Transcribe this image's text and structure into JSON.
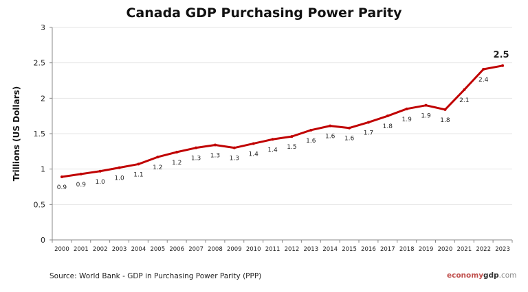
{
  "chart_data": {
    "type": "line",
    "title": "Canada GDP Purchasing Power Parity",
    "xlabel": "",
    "ylabel": "Trillions (US Dollars)",
    "ylim": [
      0,
      3
    ],
    "yticks": [
      "0",
      "0.5",
      "1",
      "1.5",
      "2",
      "2.5",
      "3"
    ],
    "grid": true,
    "line_color": "#c00000",
    "categories": [
      "2000",
      "2001",
      "2002",
      "2003",
      "2004",
      "2005",
      "2006",
      "2007",
      "2008",
      "2009",
      "2010",
      "2011",
      "2012",
      "2013",
      "2014",
      "2015",
      "2016",
      "2017",
      "2018",
      "2019",
      "2020",
      "2021",
      "2022",
      "2023"
    ],
    "series": [
      {
        "values": [
          0.89,
          0.93,
          0.97,
          1.02,
          1.07,
          1.17,
          1.24,
          1.3,
          1.34,
          1.3,
          1.36,
          1.42,
          1.46,
          1.55,
          1.61,
          1.58,
          1.66,
          1.75,
          1.85,
          1.9,
          1.84,
          2.12,
          2.41,
          2.46
        ],
        "labels": [
          "0.9",
          "0.9",
          "1.0",
          "1.0",
          "1.1",
          "1.2",
          "1.2",
          "1.3",
          "1.3",
          "1.3",
          "1.4",
          "1.4",
          "1.5",
          "1.6",
          "1.6",
          "1.6",
          "1.7",
          "1.8",
          "1.9",
          "1.9",
          "1.8",
          "2.1",
          "2.4",
          "2.5"
        ]
      }
    ]
  },
  "footer": {
    "source": "Source:  World Bank -  GDP  in Purchasing Power Parity (PPP)",
    "brand_part1": "economy",
    "brand_part2": "gdp",
    "brand_part3": ".com"
  }
}
